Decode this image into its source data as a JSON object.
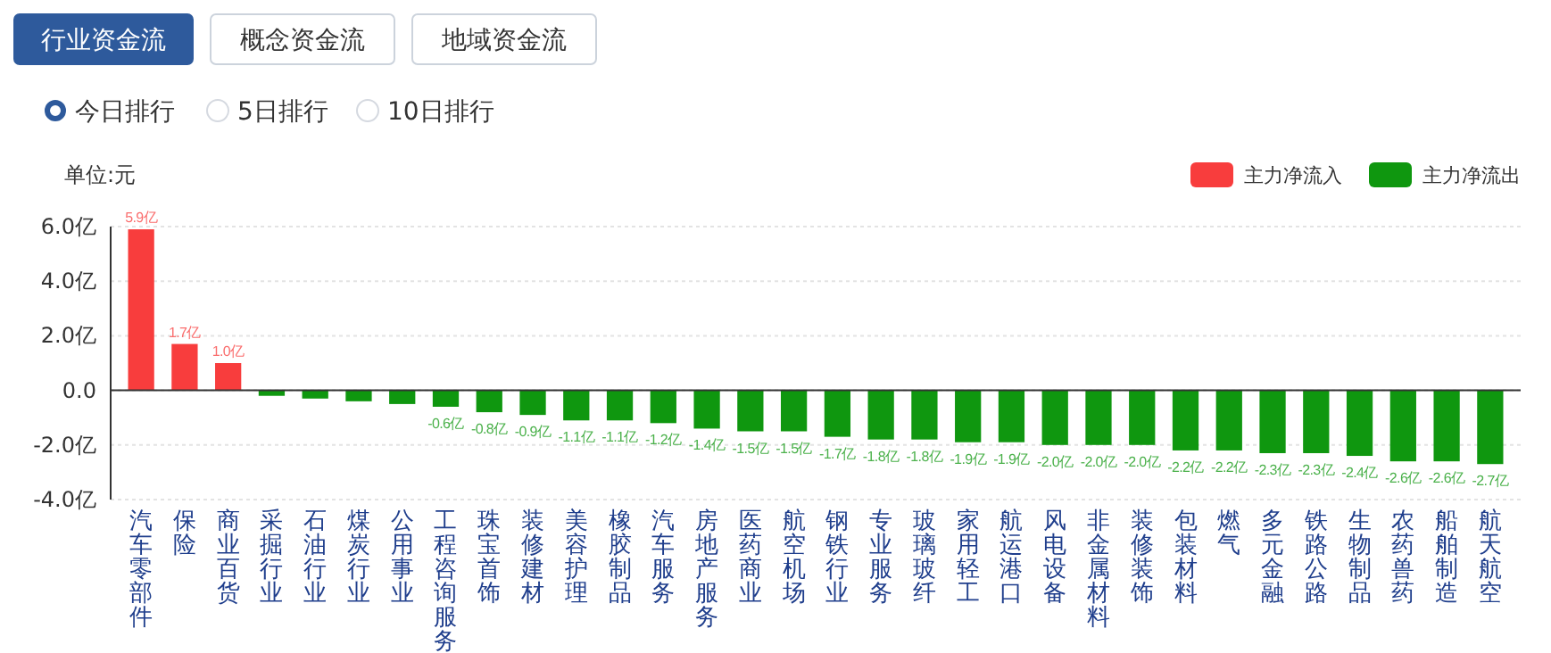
{
  "chart_data": [
    {
      "type": "other",
      "annotations": [
        "行业资金流",
        "概念资金流",
        "地域资金流",
        "今日排行",
        "5日排行",
        "10日排行"
      ]
    },
    {
      "type": "bar",
      "ylabel": "单位:元",
      "categories": [
        "汽车零部件",
        "保险",
        "商业百货",
        "采掘行业",
        "石油行业",
        "煤炭行业",
        "公用事业",
        "工程咨询服务",
        "珠宝首饰",
        "装修建材",
        "美容护理",
        "橡胶制品",
        "汽车服务",
        "房地产服务",
        "医药商业",
        "航空机场",
        "钢铁行业",
        "专业服务",
        "玻璃玻纤",
        "家用轻工",
        "航运港口",
        "风电设备",
        "非金属材料",
        "装修装饰",
        "包装材料",
        "燃气",
        "多元金融",
        "铁路公路",
        "生物制品",
        "农药兽药",
        "船舶制造",
        "航天航空"
      ],
      "series": [
        {
          "name": "主力净流入",
          "color": "#f83d3d",
          "values": [
            5.9,
            1.7,
            1.0,
            null,
            null,
            null,
            null,
            null,
            null,
            null,
            null,
            null,
            null,
            null,
            null,
            null,
            null,
            null,
            null,
            null,
            null,
            null,
            null,
            null,
            null,
            null,
            null,
            null,
            null,
            null,
            null,
            null
          ],
          "value_labels": [
            "5.9亿",
            "1.7亿",
            "1.0亿",
            null,
            null,
            null,
            null,
            null,
            null,
            null,
            null,
            null,
            null,
            null,
            null,
            null,
            null,
            null,
            null,
            null,
            null,
            null,
            null,
            null,
            null,
            null,
            null,
            null,
            null,
            null,
            null,
            null
          ]
        },
        {
          "name": "主力净流出",
          "color": "#0f970f",
          "values": [
            null,
            null,
            null,
            -0.2,
            -0.3,
            -0.4,
            -0.5,
            -0.6,
            -0.8,
            -0.9,
            -1.1,
            -1.1,
            -1.2,
            -1.4,
            -1.5,
            -1.5,
            -1.7,
            -1.8,
            -1.8,
            -1.9,
            -1.9,
            -2.0,
            -2.0,
            -2.0,
            -2.2,
            -2.2,
            -2.3,
            -2.3,
            -2.4,
            -2.6,
            -2.6,
            -2.7
          ],
          "value_labels": [
            null,
            null,
            null,
            null,
            null,
            null,
            null,
            "-0.6亿",
            "-0.8亿",
            "-0.9亿",
            "-1.1亿",
            "-1.1亿",
            "-1.2亿",
            "-1.4亿",
            "-1.5亿",
            "-1.5亿",
            "-1.7亿",
            "-1.8亿",
            "-1.8亿",
            "-1.9亿",
            "-1.9亿",
            "-2.0亿",
            "-2.0亿",
            "-2.0亿",
            "-2.2亿",
            "-2.2亿",
            "-2.3亿",
            "-2.3亿",
            "-2.4亿",
            "-2.6亿",
            "-2.6亿",
            "-2.7亿"
          ]
        }
      ],
      "ylim": [
        -4,
        6
      ],
      "yticks": [
        {
          "value": 6,
          "label": "6.0亿"
        },
        {
          "value": 4,
          "label": "4.0亿"
        },
        {
          "value": 2,
          "label": "2.0亿"
        },
        {
          "value": 0,
          "label": "0.0"
        },
        {
          "value": -2,
          "label": "-2.0亿"
        },
        {
          "value": -4,
          "label": "-4.0亿"
        }
      ],
      "grid": "y",
      "legend": "top right"
    }
  ]
}
